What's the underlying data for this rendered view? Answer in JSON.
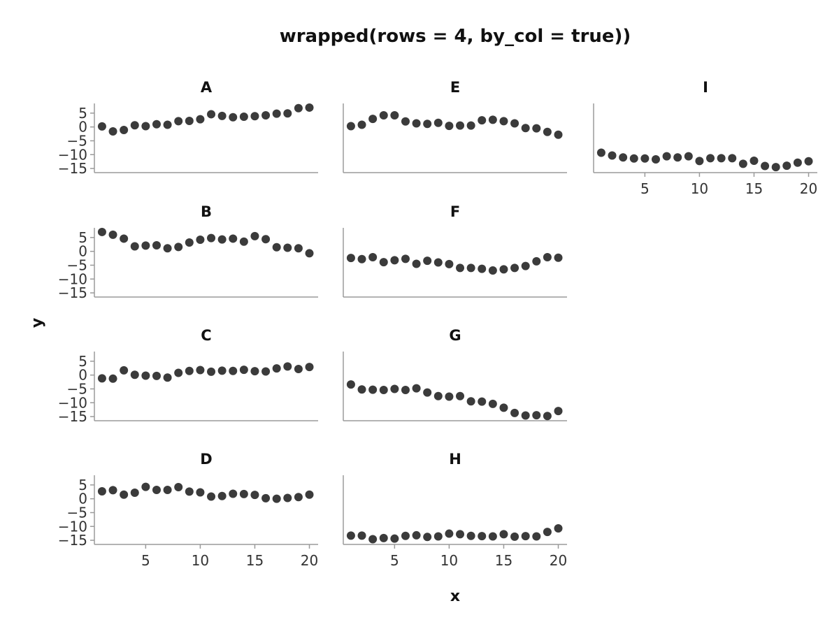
{
  "chart_data": {
    "type": "scatter",
    "title": "wrapped(rows = 4, by_col = true))",
    "xlabel": "x",
    "ylabel": "y",
    "xlim": [
      0.3,
      20.8
    ],
    "ylim": [
      -16.5,
      8.5
    ],
    "xticks": [
      5,
      10,
      15,
      20
    ],
    "yticks": [
      5,
      0,
      -5,
      -10,
      -15
    ],
    "grid": false,
    "color": "#3b3b3b",
    "x": [
      1,
      2,
      3,
      4,
      5,
      6,
      7,
      8,
      9,
      10,
      11,
      12,
      13,
      14,
      15,
      16,
      17,
      18,
      19,
      20
    ],
    "panels": [
      {
        "name": "A",
        "y": [
          0.2,
          -1.6,
          -1.1,
          0.6,
          0.3,
          1.0,
          0.8,
          2.1,
          2.2,
          2.8,
          4.6,
          4.0,
          3.5,
          3.7,
          3.9,
          4.2,
          4.8,
          4.9,
          6.8,
          7.0
        ]
      },
      {
        "name": "B",
        "y": [
          7.0,
          6.0,
          4.6,
          1.8,
          2.1,
          2.2,
          1.1,
          1.6,
          3.2,
          4.2,
          4.8,
          4.3,
          4.6,
          3.5,
          5.5,
          4.4,
          1.5,
          1.3,
          1.1,
          -0.7
        ]
      },
      {
        "name": "C",
        "y": [
          -1.2,
          -1.3,
          1.7,
          0.1,
          -0.2,
          -0.3,
          -0.9,
          0.8,
          1.5,
          1.8,
          1.2,
          1.6,
          1.5,
          1.9,
          1.4,
          1.3,
          2.4,
          3.1,
          2.2,
          2.9
        ]
      },
      {
        "name": "D",
        "y": [
          2.7,
          3.1,
          1.5,
          2.2,
          4.3,
          3.2,
          3.2,
          4.2,
          2.6,
          2.3,
          0.8,
          1.0,
          1.8,
          1.7,
          1.4,
          0.2,
          0.0,
          0.3,
          0.6,
          1.5
        ]
      },
      {
        "name": "E",
        "y": [
          0.3,
          0.8,
          2.9,
          4.2,
          4.2,
          2.0,
          1.3,
          1.1,
          1.5,
          0.4,
          0.5,
          0.5,
          2.4,
          2.6,
          2.1,
          1.3,
          -0.4,
          -0.5,
          -1.8,
          -2.8
        ]
      },
      {
        "name": "F",
        "y": [
          -2.4,
          -2.8,
          -2.1,
          -3.9,
          -3.2,
          -2.7,
          -4.5,
          -3.4,
          -4.0,
          -4.6,
          -6.0,
          -6.0,
          -6.3,
          -6.9,
          -6.5,
          -6.0,
          -5.3,
          -3.6,
          -2.1,
          -2.3
        ]
      },
      {
        "name": "G",
        "y": [
          -3.4,
          -5.2,
          -5.3,
          -5.4,
          -5.0,
          -5.4,
          -4.8,
          -6.3,
          -7.6,
          -7.8,
          -7.6,
          -9.5,
          -9.6,
          -10.4,
          -11.8,
          -13.7,
          -14.6,
          -14.5,
          -14.8,
          -13.0
        ]
      },
      {
        "name": "H",
        "y": [
          -13.3,
          -13.3,
          -14.6,
          -14.2,
          -14.4,
          -13.4,
          -13.2,
          -13.8,
          -13.6,
          -12.6,
          -12.8,
          -13.4,
          -13.5,
          -13.6,
          -12.8,
          -13.7,
          -13.5,
          -13.6,
          -12.0,
          -10.7
        ]
      },
      {
        "name": "I",
        "y": [
          -9.3,
          -10.3,
          -11.0,
          -11.4,
          -11.4,
          -11.7,
          -10.6,
          -11.0,
          -10.6,
          -12.3,
          -11.3,
          -11.3,
          -11.3,
          -13.3,
          -12.2,
          -14.1,
          -14.5,
          -14.0,
          -12.9,
          -12.4
        ]
      }
    ]
  }
}
